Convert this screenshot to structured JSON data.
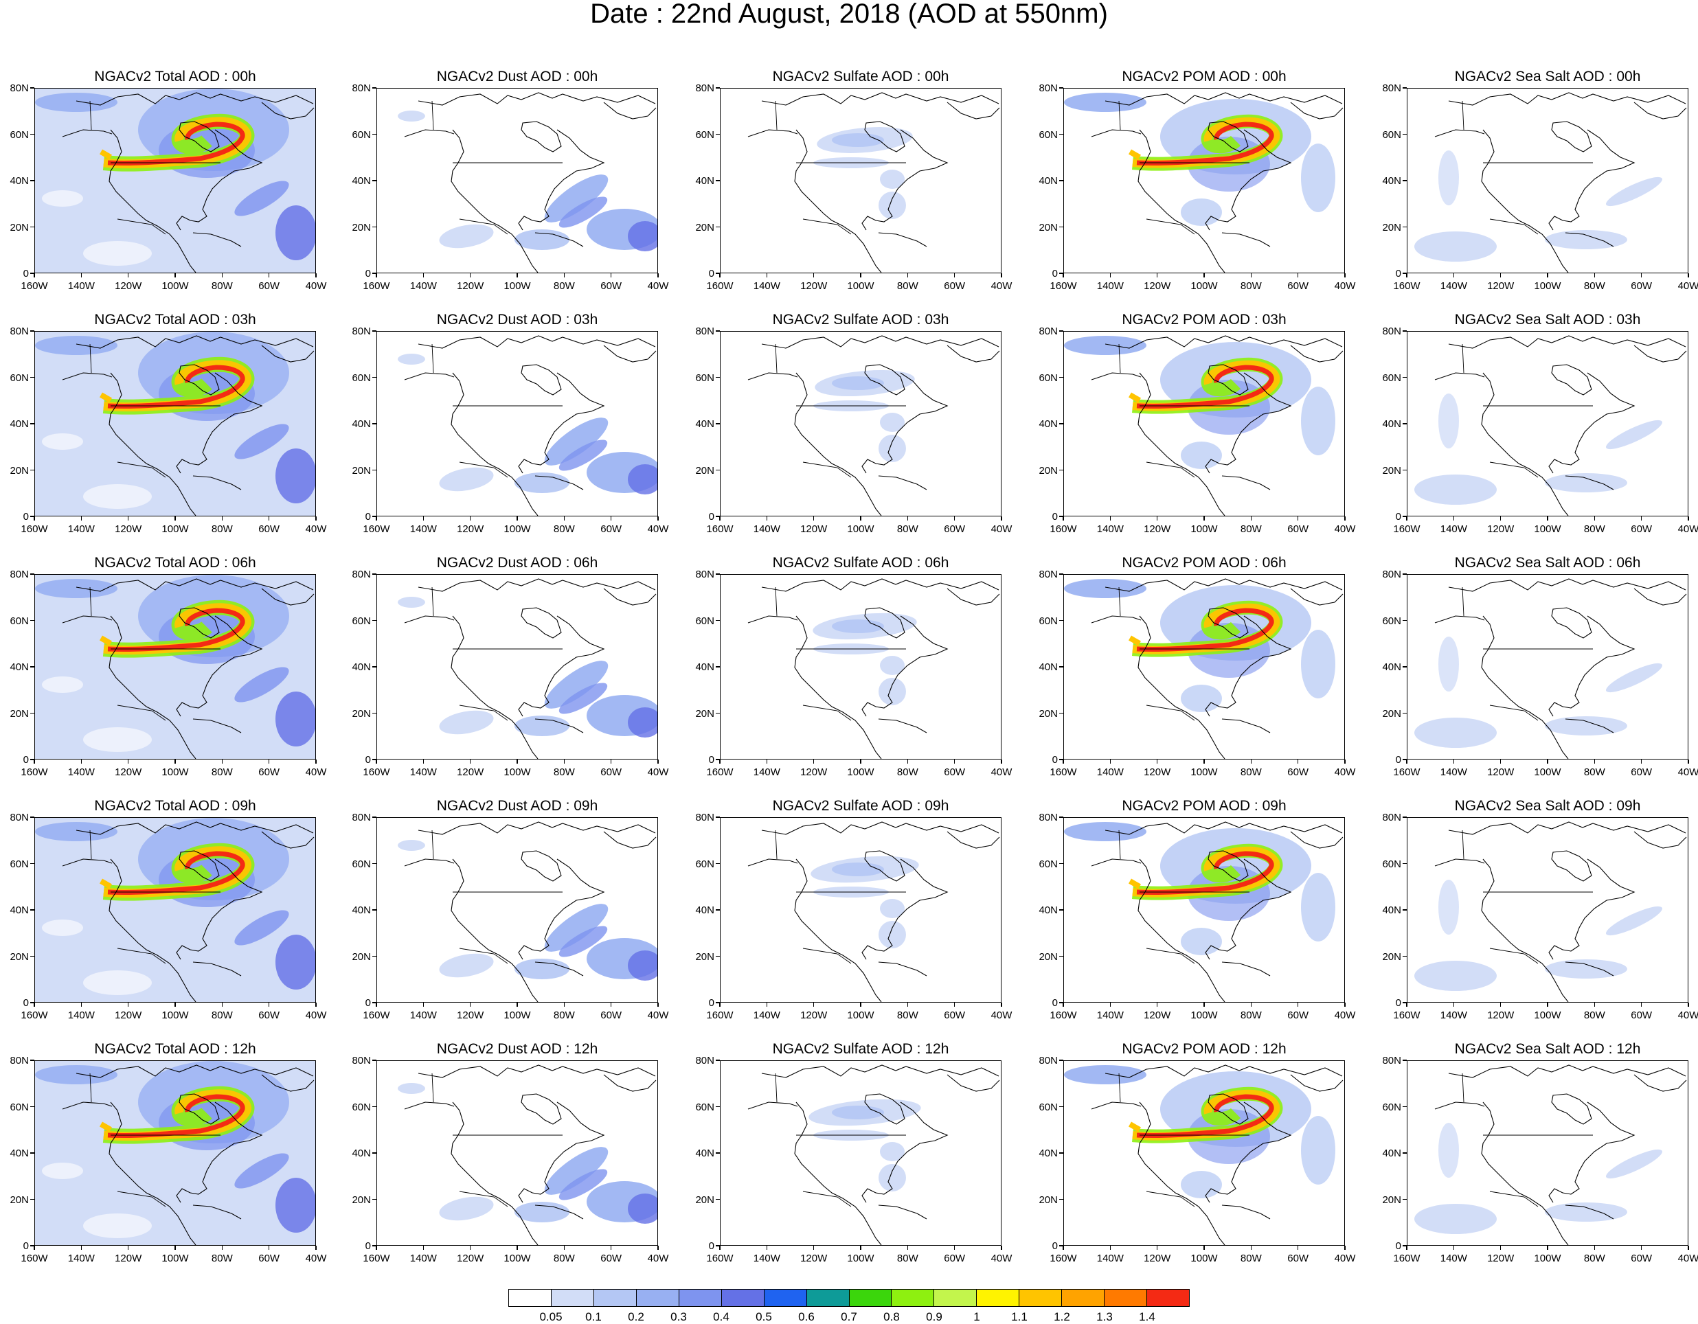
{
  "title": "Date : 22nd August, 2018 (AOD at 550nm)",
  "x_ticks": [
    "160W",
    "140W",
    "120W",
    "100W",
    "80W",
    "60W",
    "40W"
  ],
  "y_ticks": [
    "80N",
    "60N",
    "40N",
    "20N",
    "0"
  ],
  "panels": [
    {
      "title": "NGACv2 Total AOD : 00h",
      "species": "total"
    },
    {
      "title": "NGACv2 Dust AOD : 00h",
      "species": "dust"
    },
    {
      "title": "NGACv2 Sulfate AOD : 00h",
      "species": "sulfate"
    },
    {
      "title": "NGACv2 POM AOD : 00h",
      "species": "pom"
    },
    {
      "title": "NGACv2 Sea Salt AOD : 00h",
      "species": "seasalt"
    },
    {
      "title": "NGACv2 Total AOD : 03h",
      "species": "total"
    },
    {
      "title": "NGACv2 Dust AOD : 03h",
      "species": "dust"
    },
    {
      "title": "NGACv2 Sulfate AOD : 03h",
      "species": "sulfate"
    },
    {
      "title": "NGACv2 POM AOD : 03h",
      "species": "pom"
    },
    {
      "title": "NGACv2 Sea Salt AOD : 03h",
      "species": "seasalt"
    },
    {
      "title": "NGACv2 Total AOD : 06h",
      "species": "total"
    },
    {
      "title": "NGACv2 Dust AOD : 06h",
      "species": "dust"
    },
    {
      "title": "NGACv2 Sulfate AOD : 06h",
      "species": "sulfate"
    },
    {
      "title": "NGACv2 POM AOD : 06h",
      "species": "pom"
    },
    {
      "title": "NGACv2 Sea Salt AOD : 06h",
      "species": "seasalt"
    },
    {
      "title": "NGACv2 Total AOD : 09h",
      "species": "total"
    },
    {
      "title": "NGACv2 Dust AOD : 09h",
      "species": "dust"
    },
    {
      "title": "NGACv2 Sulfate AOD : 09h",
      "species": "sulfate"
    },
    {
      "title": "NGACv2 POM AOD : 09h",
      "species": "pom"
    },
    {
      "title": "NGACv2 Sea Salt  AOD : 09h",
      "species": "seasalt"
    },
    {
      "title": "NGACv2 Total AOD  : 12h",
      "species": "total"
    },
    {
      "title": "NGACv2 Dust AOD : 12h",
      "species": "dust"
    },
    {
      "title": "NGACv2 Sulfate AOD : 12h",
      "species": "sulfate"
    },
    {
      "title": "NGACv2 POM  AOD : 12h",
      "species": "pom"
    },
    {
      "title": "NGACv2 Sea Salt  AOD : 12h",
      "species": "seasalt"
    }
  ],
  "colorbar": {
    "colors": [
      "#ffffff",
      "#d2ddf7",
      "#b4c7f4",
      "#98b0f2",
      "#7e94ef",
      "#6471e6",
      "#1f63f0",
      "#0e9b98",
      "#3bd60c",
      "#8ef010",
      "#c3f54c",
      "#fff300",
      "#ffc400",
      "#ffa300",
      "#ff7a00",
      "#f42a14"
    ],
    "labels": [
      "0.05",
      "0.1",
      "0.2",
      "0.3",
      "0.4",
      "0.5",
      "0.6",
      "0.7",
      "0.8",
      "0.9",
      "1",
      "1.1",
      "1.2",
      "1.3",
      "1.4"
    ]
  }
}
